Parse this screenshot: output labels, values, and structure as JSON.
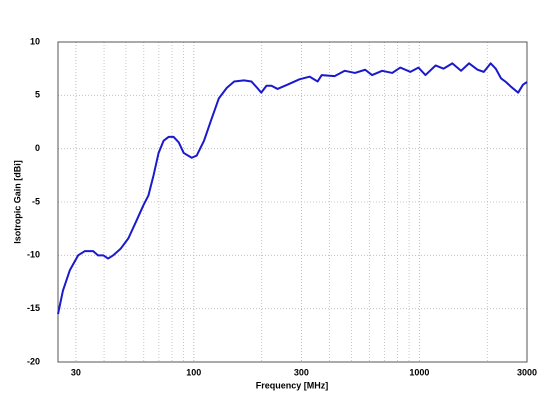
{
  "chart_data": {
    "type": "line",
    "x_label": "Frequency [MHz]",
    "y_label": "Isotropic Gain [dBi]",
    "x_scale": "log",
    "grid": true,
    "minor_grid": true,
    "xlim": [
      25,
      3000
    ],
    "ylim": [
      -20,
      10
    ],
    "xticks": [
      30,
      100,
      300,
      1000,
      3000
    ],
    "yticks": [
      -20,
      -15,
      -10,
      -5,
      0,
      5,
      10
    ],
    "x": [
      25,
      26.3,
      28.2,
      30.7,
      32.9,
      35.8,
      37.6,
      39.7,
      41.7,
      43.9,
      47.3,
      51.3,
      55.7,
      59.8,
      62.9,
      66.3,
      69.8,
      73.5,
      77.3,
      81.4,
      85.7,
      90.2,
      97.9,
      103,
      111,
      119,
      129,
      140,
      151,
      167,
      180,
      191,
      199,
      210,
      221,
      235,
      260,
      294,
      326,
      354,
      369,
      421,
      467,
      518,
      575,
      617,
      684,
      758,
      823,
      912,
      990,
      1064,
      1180,
      1280,
      1400,
      1530,
      1660,
      1810,
      1930,
      2070,
      2180,
      2300,
      2420,
      2550,
      2740,
      2880,
      3000
    ],
    "series": [
      {
        "color": "#1a1acc",
        "values": [
          -15.5,
          -13.3,
          -11.4,
          -10,
          -9.6,
          -9.6,
          -10,
          -10,
          -10.3,
          -10,
          -9.4,
          -8.4,
          -6.75,
          -5.3,
          -4.4,
          -2.5,
          -0.4,
          0.75,
          1.1,
          1.1,
          0.6,
          -0.4,
          -0.85,
          -0.65,
          0.75,
          2.6,
          4.7,
          5.7,
          6.3,
          6.4,
          6.3,
          5.7,
          5.25,
          5.9,
          5.9,
          5.6,
          6,
          6.5,
          6.75,
          6.3,
          6.9,
          6.8,
          7.3,
          7.1,
          7.4,
          6.9,
          7.3,
          7.1,
          7.6,
          7.2,
          7.6,
          6.9,
          7.8,
          7.5,
          8,
          7.3,
          8,
          7.4,
          7.2,
          8,
          7.5,
          6.6,
          6.25,
          5.8,
          5.25,
          6,
          6.25
        ]
      }
    ]
  }
}
